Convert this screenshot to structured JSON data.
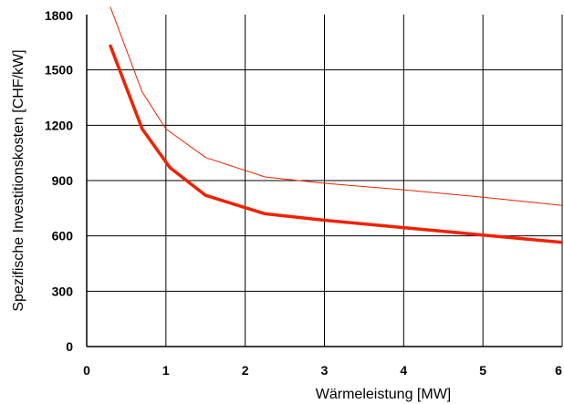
{
  "chart_data": {
    "type": "line",
    "title": "",
    "xlabel": "Wärmeleistung  [MW]",
    "ylabel": "Spezifische Investitionskosten  [CHF/kW]",
    "xlim": [
      0,
      6
    ],
    "ylim": [
      0,
      1800
    ],
    "x_ticks": [
      "0",
      "1",
      "2",
      "3",
      "4",
      "5",
      "6"
    ],
    "y_ticks": [
      "0",
      "300",
      "600",
      "900",
      "1200",
      "1500",
      "1800"
    ],
    "grid": true,
    "legend": "none",
    "series": [
      {
        "color": "#ee2200",
        "line_style": "thick",
        "x": [
          0.3,
          0.7,
          1.05,
          1.5,
          2.25,
          3.0,
          4.0,
          5.0,
          6.0
        ],
        "y": [
          1630,
          1180,
          970,
          820,
          720,
          685,
          645,
          605,
          565
        ]
      },
      {
        "color": "#ee2200",
        "line_style": "thin",
        "x": [
          0.3,
          0.7,
          1.0,
          1.5,
          2.25,
          3.0,
          4.0,
          5.0,
          6.0
        ],
        "y": [
          1840,
          1380,
          1180,
          1025,
          920,
          885,
          850,
          810,
          765
        ]
      }
    ]
  }
}
